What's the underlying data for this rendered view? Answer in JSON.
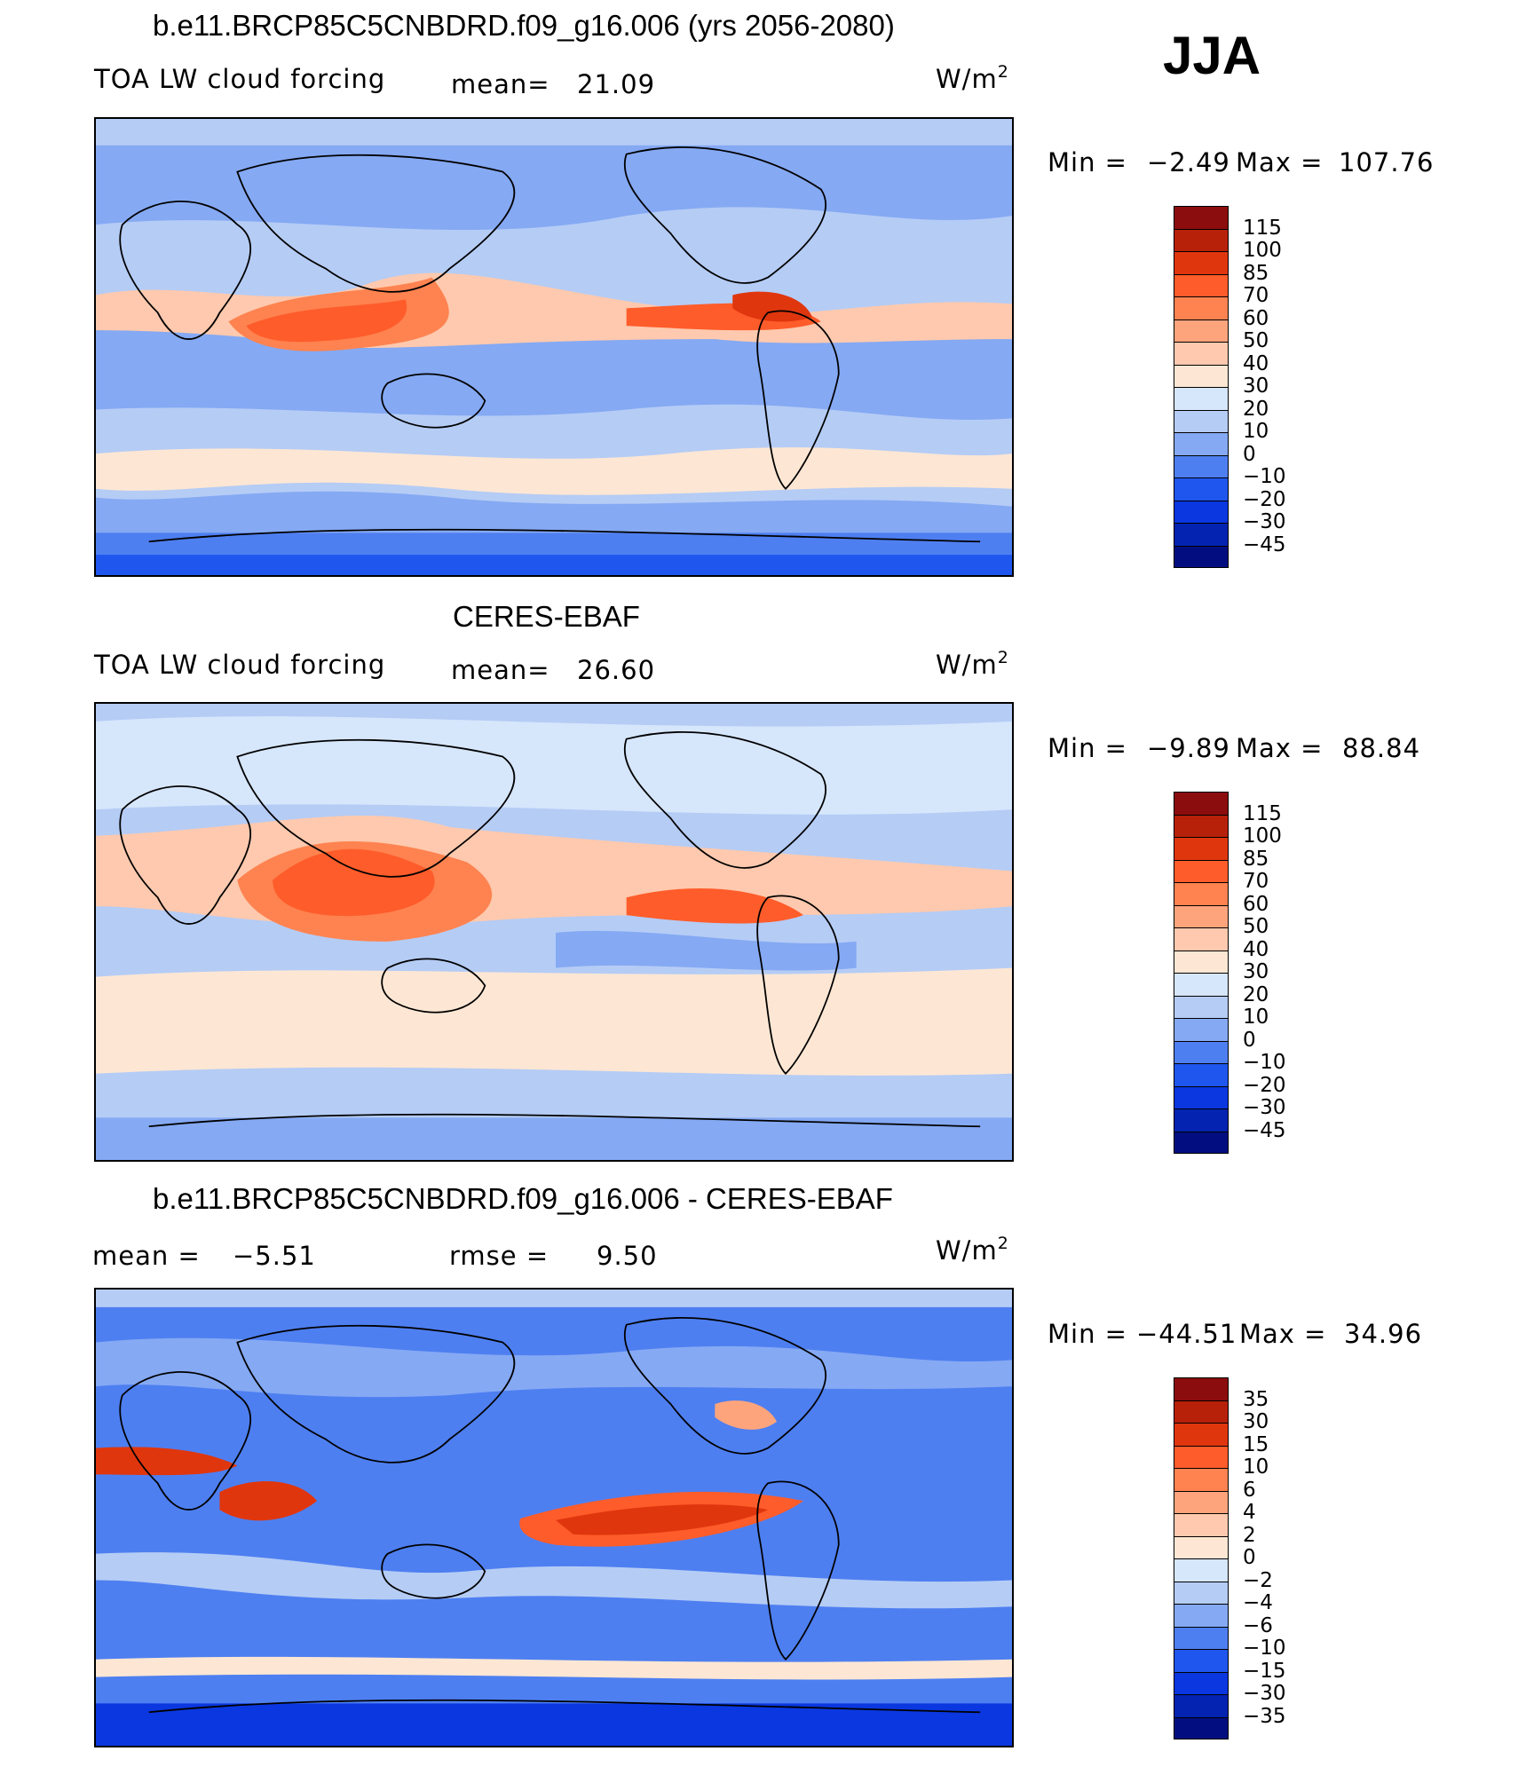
{
  "season": "JJA",
  "panels": [
    {
      "title": "b.e11.BRCP85C5CNBDRD.f09_g16.006 (yrs 2056-2080)",
      "variable": "TOA LW cloud forcing",
      "stat_label": "mean=",
      "stat_value": "21.09",
      "units": "W/m",
      "units_sup": "2",
      "min_label": "Min =",
      "min_value": "−2.49",
      "max_label": "Max =",
      "max_value": "107.76",
      "colorbar": {
        "ticks": [
          "115",
          "100",
          "85",
          "70",
          "60",
          "50",
          "40",
          "30",
          "20",
          "10",
          "0",
          "−10",
          "−20",
          "−30",
          "−45"
        ],
        "colors": [
          "#8b0d0d",
          "#b82109",
          "#e0360e",
          "#fe5c2a",
          "#fe8350",
          "#fea47c",
          "#fec9ae",
          "#fde7d4",
          "#d6e6fb",
          "#b5ccf5",
          "#85a9f3",
          "#4e7ff1",
          "#1f56ee",
          "#0a37e0",
          "#0323b0",
          "#020e80"
        ]
      },
      "legend_note": "Field shown as stylized contour bands (tropical maxima over Indian monsoon, W Pacific warm pool, E Pacific ITCZ)"
    },
    {
      "title": "CERES-EBAF",
      "variable": "TOA LW cloud forcing",
      "stat_label": "mean=",
      "stat_value": "26.60",
      "units": "W/m",
      "units_sup": "2",
      "min_label": "Min =",
      "min_value": "−9.89",
      "max_label": "Max =",
      "max_value": "88.84",
      "colorbar": {
        "ticks": [
          "115",
          "100",
          "85",
          "70",
          "60",
          "50",
          "40",
          "30",
          "20",
          "10",
          "0",
          "−10",
          "−20",
          "−30",
          "−45"
        ],
        "colors": [
          "#8b0d0d",
          "#b82109",
          "#e0360e",
          "#fe5c2a",
          "#fe8350",
          "#fea47c",
          "#fec9ae",
          "#fde7d4",
          "#d6e6fb",
          "#b5ccf5",
          "#85a9f3",
          "#4e7ff1",
          "#1f56ee",
          "#0a37e0",
          "#0323b0",
          "#020e80"
        ]
      }
    },
    {
      "title": "b.e11.BRCP85C5CNBDRD.f09_g16.006 - CERES-EBAF",
      "stat_label": "mean =",
      "stat_value": "−5.51",
      "stat2_label": "rmse =",
      "stat2_value": "9.50",
      "units": "W/m",
      "units_sup": "2",
      "min_label": "Min =",
      "min_value": "−44.51",
      "max_label": "Max =",
      "max_value": "34.96",
      "colorbar": {
        "ticks": [
          "35",
          "30",
          "15",
          "10",
          "6",
          "4",
          "2",
          "0",
          "−2",
          "−4",
          "−6",
          "−10",
          "−15",
          "−30",
          "−35"
        ],
        "colors": [
          "#8b0d0d",
          "#b82109",
          "#e0360e",
          "#fe5c2a",
          "#fe8350",
          "#fea47c",
          "#fec9ae",
          "#fde7d4",
          "#d6e6fb",
          "#b5ccf5",
          "#85a9f3",
          "#4e7ff1",
          "#1f56ee",
          "#0a37e0",
          "#0323b0",
          "#020e80"
        ]
      }
    }
  ]
}
